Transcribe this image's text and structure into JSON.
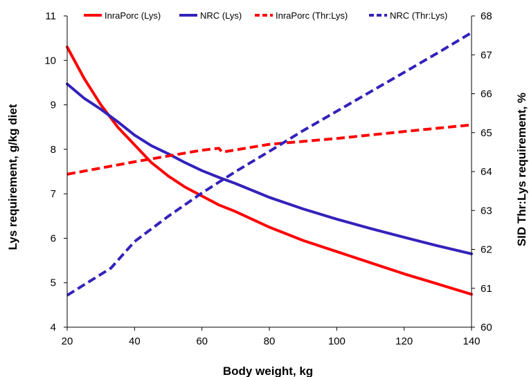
{
  "chart_data": {
    "type": "line",
    "title": "",
    "xlabel": "Body weight, kg",
    "ylabel": "Lys requirement, g/kg diet",
    "y2label": "SID Thr:Lys requirement, %",
    "xlim": [
      20,
      140
    ],
    "ylim": [
      4,
      11
    ],
    "y2lim": [
      60,
      68
    ],
    "x_ticks": [
      "20",
      "40",
      "60",
      "80",
      "100",
      "120",
      "140"
    ],
    "y_ticks": [
      "4",
      "5",
      "6",
      "7",
      "8",
      "9",
      "10",
      "11"
    ],
    "y2_ticks": [
      "60",
      "61",
      "62",
      "63",
      "64",
      "65",
      "66",
      "67",
      "68"
    ],
    "grid": false,
    "legend_position": "top",
    "series": [
      {
        "name": "InraPorc (Lys)",
        "axis": "left",
        "color": "#ff0000",
        "dash": "solid",
        "x": [
          20,
          25,
          30,
          35,
          40,
          45,
          50,
          55,
          60,
          65,
          70,
          80,
          90,
          100,
          110,
          120,
          130,
          140
        ],
        "y": [
          10.3,
          9.6,
          9.0,
          8.5,
          8.1,
          7.7,
          7.4,
          7.15,
          6.95,
          6.75,
          6.6,
          6.25,
          5.95,
          5.7,
          5.45,
          5.2,
          4.97,
          4.74
        ]
      },
      {
        "name": "NRC (Lys)",
        "axis": "left",
        "color": "#3322bb",
        "dash": "solid",
        "x": [
          20,
          25,
          30,
          35,
          40,
          45,
          50,
          55,
          60,
          65,
          70,
          80,
          90,
          100,
          110,
          120,
          130,
          140
        ],
        "y": [
          9.47,
          9.15,
          8.9,
          8.62,
          8.32,
          8.08,
          7.9,
          7.7,
          7.52,
          7.37,
          7.23,
          6.92,
          6.66,
          6.43,
          6.22,
          6.02,
          5.83,
          5.65
        ]
      },
      {
        "name": "InraPorc (Thr:Lys)",
        "axis": "right",
        "color": "#ff0000",
        "dash": "dashed",
        "x": [
          20,
          40,
          60,
          65,
          66,
          80,
          100,
          120,
          140
        ],
        "y": [
          63.93,
          64.25,
          64.55,
          64.6,
          64.5,
          64.7,
          64.85,
          65.03,
          65.2
        ]
      },
      {
        "name": "NRC (Thr:Lys)",
        "axis": "right",
        "color": "#3322bb",
        "dash": "dashed",
        "x": [
          20,
          33,
          40,
          50,
          60,
          70,
          80,
          90,
          100,
          110,
          120,
          130,
          140
        ],
        "y": [
          60.82,
          61.52,
          62.2,
          62.85,
          63.45,
          64.0,
          64.52,
          65.05,
          65.55,
          66.05,
          66.55,
          67.05,
          67.57
        ]
      }
    ]
  }
}
